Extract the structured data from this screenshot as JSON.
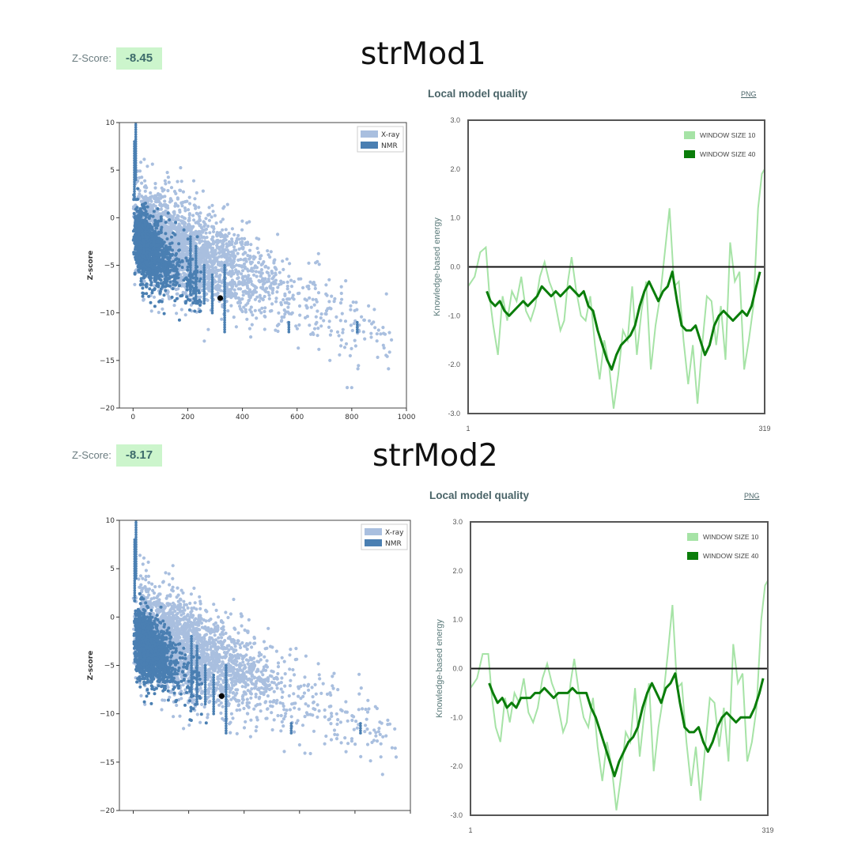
{
  "colors": {
    "xray": "#a9bfdf",
    "nmr": "#4a7fb2",
    "window10": "#a6e3a6",
    "window40": "#0a7d0a",
    "badge_bg": "#ccf5cc",
    "frame": "#555555"
  },
  "models": [
    {
      "title": "strMod1",
      "zscore_label": "Z-Score:",
      "zscore_value": "-8.45",
      "local_quality_title": "Local model quality",
      "png_link": "PNG"
    },
    {
      "title": "strMod2",
      "zscore_label": "Z-Score:",
      "zscore_value": "-8.17",
      "local_quality_title": "Local model quality",
      "png_link": "PNG"
    }
  ],
  "chart_data": [
    {
      "type": "scatter",
      "model": "strMod1",
      "ylabel": "Z-score",
      "xlim": [
        -50,
        1000
      ],
      "ylim": [
        -20,
        10
      ],
      "yticks": [
        10,
        5,
        0,
        -5,
        -10,
        -15,
        -20
      ],
      "yticklabels": [
        "10",
        "5",
        "0",
        "−5",
        "−10",
        "−15",
        "−20"
      ],
      "xticks": [
        0,
        200,
        400,
        600,
        800,
        1000
      ],
      "xticklabels": [
        "0",
        "200",
        "400",
        "600",
        "800",
        "1000"
      ],
      "legend": [
        "X-ray",
        "NMR"
      ],
      "legend_position": "top-right",
      "series": [
        {
          "name": "X-ray",
          "description": "dense cloud of PDB X-ray structures, Z-score decreasing with residue count"
        },
        {
          "name": "NMR",
          "description": "dense cloud of PDB NMR structures concentrated at small residue counts"
        }
      ],
      "highlight_point": {
        "x": 319,
        "y": -8.45
      }
    },
    {
      "type": "line",
      "model": "strMod1",
      "ylabel": "Knowledge-based energy",
      "ylim": [
        -3,
        3
      ],
      "yticks": [
        "3.0",
        "2.0",
        "1.0",
        "0.0",
        "-1.0",
        "-2.0",
        "-3.0"
      ],
      "xlim": [
        1,
        319
      ],
      "xticklabels": [
        "1",
        "319"
      ],
      "legend": [
        "WINDOW SIZE 10",
        "WINDOW SIZE 40"
      ],
      "legend_position": "top-right",
      "series": [
        {
          "name": "WINDOW SIZE 10",
          "x": [
            1,
            8,
            14,
            20,
            24,
            28,
            33,
            38,
            43,
            48,
            53,
            58,
            63,
            68,
            73,
            78,
            83,
            88,
            92,
            96,
            100,
            104,
            108,
            112,
            117,
            122,
            127,
            132,
            137,
            142,
            147,
            152,
            157,
            162,
            167,
            172,
            177,
            182,
            187,
            192,
            197,
            202,
            207,
            212,
            217,
            222,
            227,
            232,
            237,
            242,
            247,
            252,
            257,
            262,
            267,
            272,
            277,
            282,
            287,
            292,
            297,
            302,
            307,
            312,
            316,
            319
          ],
          "y": [
            -0.4,
            -0.2,
            0.3,
            0.4,
            -0.6,
            -1.2,
            -1.8,
            -0.6,
            -1.1,
            -0.5,
            -0.7,
            -0.2,
            -0.9,
            -1.1,
            -0.8,
            -0.2,
            0.1,
            -0.3,
            -0.5,
            -0.9,
            -1.3,
            -1.1,
            -0.3,
            0.2,
            -0.5,
            -1.0,
            -1.1,
            -0.6,
            -1.6,
            -2.3,
            -1.5,
            -2.0,
            -2.9,
            -2.2,
            -1.3,
            -1.5,
            -0.4,
            -1.8,
            -0.9,
            -0.3,
            -2.1,
            -1.2,
            -0.6,
            0.3,
            1.2,
            -0.4,
            -0.3,
            -1.5,
            -2.4,
            -1.6,
            -2.8,
            -1.6,
            -0.6,
            -0.7,
            -1.6,
            -0.8,
            -1.9,
            0.5,
            -0.3,
            -0.1,
            -2.1,
            -1.5,
            -0.8,
            1.2,
            1.9,
            2.0
          ]
        },
        {
          "name": "WINDOW SIZE 40",
          "x": [
            21,
            25,
            30,
            35,
            40,
            45,
            50,
            55,
            60,
            65,
            70,
            75,
            80,
            85,
            90,
            95,
            100,
            105,
            110,
            115,
            120,
            125,
            130,
            135,
            140,
            145,
            150,
            155,
            160,
            165,
            170,
            175,
            180,
            185,
            190,
            195,
            200,
            205,
            210,
            215,
            220,
            225,
            230,
            235,
            240,
            245,
            250,
            255,
            260,
            265,
            270,
            275,
            280,
            285,
            290,
            295,
            300,
            305,
            310,
            314
          ],
          "y": [
            -0.5,
            -0.7,
            -0.8,
            -0.7,
            -0.9,
            -1.0,
            -0.9,
            -0.8,
            -0.7,
            -0.8,
            -0.7,
            -0.6,
            -0.4,
            -0.5,
            -0.6,
            -0.5,
            -0.6,
            -0.5,
            -0.4,
            -0.5,
            -0.6,
            -0.5,
            -0.8,
            -0.9,
            -1.3,
            -1.6,
            -1.9,
            -2.1,
            -1.8,
            -1.6,
            -1.5,
            -1.4,
            -1.2,
            -0.8,
            -0.5,
            -0.3,
            -0.5,
            -0.7,
            -0.5,
            -0.4,
            -0.1,
            -0.7,
            -1.2,
            -1.3,
            -1.3,
            -1.2,
            -1.5,
            -1.8,
            -1.6,
            -1.2,
            -1.0,
            -0.9,
            -1.0,
            -1.1,
            -1.0,
            -0.9,
            -1.0,
            -0.8,
            -0.4,
            -0.1
          ]
        }
      ]
    },
    {
      "type": "scatter",
      "model": "strMod2",
      "ylabel": "Z-score",
      "xlim": [
        -50,
        1000
      ],
      "ylim": [
        -20,
        10
      ],
      "yticks": [
        10,
        5,
        0,
        -5,
        -10,
        -15,
        -20
      ],
      "yticklabels": [
        "10",
        "5",
        "0",
        "−5",
        "−10",
        "−15",
        "−20"
      ],
      "xticks": [
        0,
        200,
        400,
        600,
        800,
        1000
      ],
      "xticklabels": [],
      "legend": [
        "X-ray",
        "NMR"
      ],
      "legend_position": "top-right",
      "series": [
        {
          "name": "X-ray",
          "description": "dense cloud of PDB X-ray structures, Z-score decreasing with residue count"
        },
        {
          "name": "NMR",
          "description": "dense cloud of PDB NMR structures concentrated at small residue counts"
        }
      ],
      "highlight_point": {
        "x": 319,
        "y": -8.17
      }
    },
    {
      "type": "line",
      "model": "strMod2",
      "ylabel": "Knowledge-based energy",
      "ylim": [
        -3,
        3
      ],
      "yticks": [
        "3.0",
        "2.0",
        "1.0",
        "0.0",
        "-1.0",
        "-2.0",
        "-3.0"
      ],
      "xlim": [
        1,
        319
      ],
      "xticklabels": [
        "1",
        "319"
      ],
      "legend": [
        "WINDOW SIZE 10",
        "WINDOW SIZE 40"
      ],
      "legend_position": "top-right",
      "series": [
        {
          "name": "WINDOW SIZE 10",
          "x": [
            1,
            8,
            14,
            20,
            24,
            28,
            33,
            38,
            43,
            48,
            53,
            58,
            63,
            68,
            73,
            78,
            83,
            88,
            92,
            96,
            100,
            104,
            108,
            112,
            117,
            122,
            127,
            132,
            137,
            142,
            147,
            152,
            157,
            162,
            167,
            172,
            177,
            182,
            187,
            192,
            197,
            202,
            207,
            212,
            217,
            222,
            227,
            232,
            237,
            242,
            247,
            252,
            257,
            262,
            267,
            272,
            277,
            282,
            287,
            292,
            297,
            302,
            307,
            312,
            316,
            319
          ],
          "y": [
            -0.4,
            -0.2,
            0.3,
            0.3,
            -0.6,
            -1.2,
            -1.5,
            -0.6,
            -1.1,
            -0.5,
            -0.7,
            -0.2,
            -0.9,
            -1.1,
            -0.8,
            -0.2,
            0.1,
            -0.3,
            -0.5,
            -0.9,
            -1.3,
            -1.1,
            -0.3,
            0.2,
            -0.5,
            -1.0,
            -1.2,
            -0.6,
            -1.6,
            -2.3,
            -1.5,
            -2.0,
            -2.9,
            -2.2,
            -1.3,
            -1.5,
            -0.4,
            -1.8,
            -0.9,
            -0.3,
            -2.1,
            -1.2,
            -0.6,
            0.3,
            1.3,
            -0.4,
            -0.3,
            -1.5,
            -2.4,
            -1.6,
            -2.7,
            -1.6,
            -0.6,
            -0.7,
            -1.6,
            -0.8,
            -1.9,
            0.5,
            -0.3,
            -0.1,
            -1.9,
            -1.5,
            -0.8,
            1.0,
            1.7,
            1.8
          ]
        },
        {
          "name": "WINDOW SIZE 40",
          "x": [
            21,
            25,
            30,
            35,
            40,
            45,
            50,
            55,
            60,
            65,
            70,
            75,
            80,
            85,
            90,
            95,
            100,
            105,
            110,
            115,
            120,
            125,
            130,
            135,
            140,
            145,
            150,
            155,
            160,
            165,
            170,
            175,
            180,
            185,
            190,
            195,
            200,
            205,
            210,
            215,
            220,
            225,
            230,
            235,
            240,
            245,
            250,
            255,
            260,
            265,
            270,
            275,
            280,
            285,
            290,
            295,
            300,
            305,
            310,
            314
          ],
          "y": [
            -0.3,
            -0.5,
            -0.7,
            -0.6,
            -0.8,
            -0.7,
            -0.8,
            -0.6,
            -0.6,
            -0.6,
            -0.5,
            -0.5,
            -0.4,
            -0.5,
            -0.6,
            -0.5,
            -0.5,
            -0.5,
            -0.4,
            -0.5,
            -0.5,
            -0.5,
            -0.8,
            -1.0,
            -1.3,
            -1.6,
            -1.9,
            -2.2,
            -1.9,
            -1.7,
            -1.5,
            -1.4,
            -1.2,
            -0.8,
            -0.5,
            -0.3,
            -0.5,
            -0.7,
            -0.4,
            -0.3,
            -0.1,
            -0.7,
            -1.2,
            -1.3,
            -1.3,
            -1.2,
            -1.5,
            -1.7,
            -1.5,
            -1.2,
            -1.0,
            -0.9,
            -1.0,
            -1.1,
            -1.0,
            -1.0,
            -1.0,
            -0.8,
            -0.5,
            -0.2
          ]
        }
      ]
    }
  ]
}
